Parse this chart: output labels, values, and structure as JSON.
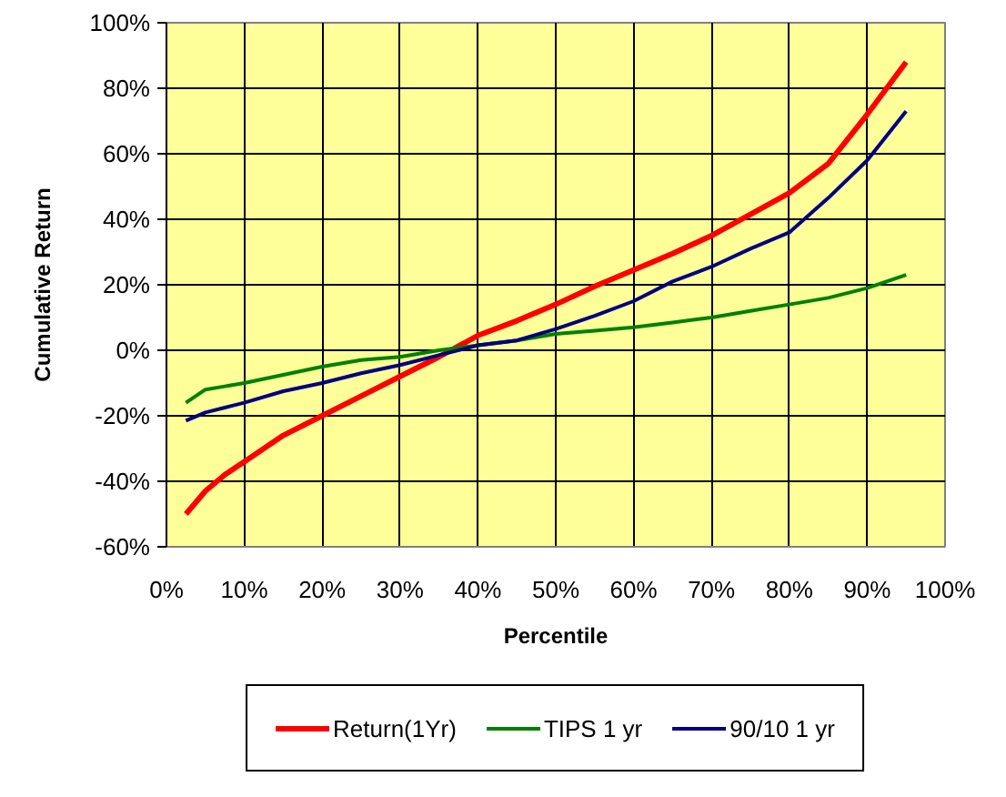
{
  "chart_data": {
    "type": "line",
    "xlabel": "Percentile",
    "ylabel": "Cumulative Return",
    "x": [
      2.5,
      5,
      7.5,
      10,
      15,
      20,
      25,
      30,
      35,
      40,
      45,
      50,
      55,
      60,
      65,
      70,
      75,
      80,
      85,
      90,
      95
    ],
    "series": [
      {
        "name": "Return(1Yr)",
        "color": "#ff0000",
        "values": [
          -50,
          -43,
          -38,
          -34,
          -26,
          -20,
          -14,
          -8,
          -2,
          4.5,
          9,
          14,
          19.5,
          24.5,
          29.5,
          35,
          41.5,
          48,
          57,
          72,
          88
        ]
      },
      {
        "name": "TIPS 1 yr",
        "color": "#008000",
        "values": [
          -16,
          -12,
          -11,
          -10,
          -7.5,
          -5,
          -3,
          -2,
          0,
          1.5,
          3,
          5,
          6,
          7,
          8.5,
          10,
          12,
          14,
          16,
          19,
          23
        ]
      },
      {
        "name": "90/10 1 yr",
        "color": "#000080",
        "values": [
          -21.5,
          -19,
          -17.5,
          -16,
          -12.5,
          -10,
          -7,
          -4.5,
          -1.5,
          1.5,
          3,
          6.5,
          10.5,
          15,
          21,
          25.5,
          31,
          36,
          46.5,
          58,
          73
        ]
      }
    ],
    "xlim": [
      0,
      100
    ],
    "ylim": [
      -60,
      100
    ],
    "xticks": [
      {
        "value": 0,
        "label": "0%"
      },
      {
        "value": 10,
        "label": "10%"
      },
      {
        "value": 20,
        "label": "20%"
      },
      {
        "value": 30,
        "label": "30%"
      },
      {
        "value": 40,
        "label": "40%"
      },
      {
        "value": 50,
        "label": "50%"
      },
      {
        "value": 60,
        "label": "60%"
      },
      {
        "value": 70,
        "label": "70%"
      },
      {
        "value": 80,
        "label": "80%"
      },
      {
        "value": 90,
        "label": "90%"
      },
      {
        "value": 100,
        "label": "100%"
      }
    ],
    "yticks": [
      {
        "value": -60,
        "label": "-60%"
      },
      {
        "value": -40,
        "label": "-40%"
      },
      {
        "value": -20,
        "label": "-20%"
      },
      {
        "value": 0,
        "label": "0%"
      },
      {
        "value": 20,
        "label": "20%"
      },
      {
        "value": 40,
        "label": "40%"
      },
      {
        "value": 60,
        "label": "60%"
      },
      {
        "value": 80,
        "label": "80%"
      },
      {
        "value": 100,
        "label": "100%"
      }
    ],
    "grid": true,
    "legend": "bottom",
    "line_style": "solid"
  }
}
